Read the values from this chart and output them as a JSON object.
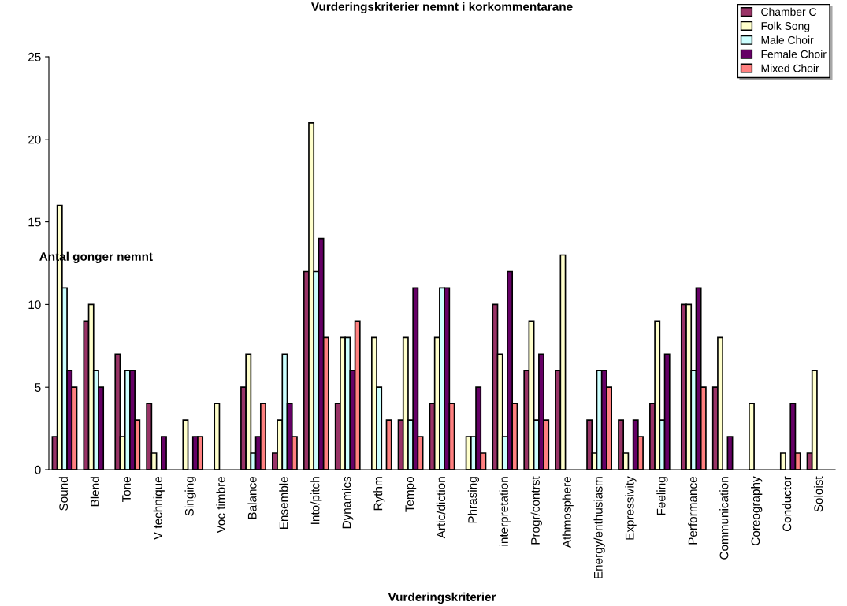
{
  "chart_data": {
    "type": "bar",
    "title": "Vurderingskriterier nemnt i korkommentarane",
    "xlabel": "Vurderingskriterier",
    "ylabel": "Antal gonger nemnt",
    "categories": [
      "Sound",
      "Blend",
      "Tone",
      "V technique",
      "Singing",
      "Voc timbre",
      "Balance",
      "Ensemble",
      "Into/pitch",
      "Dynamics",
      "Rythm",
      "Tempo",
      "Artic/diction",
      "Phrasing",
      "interpretation",
      "Progr/contrst",
      "Athmosphere",
      "Energy/enthusiasm",
      "Expressivity",
      "Feeling",
      "Performance",
      "Communication",
      "Coreography",
      "Conductor",
      "Soloist"
    ],
    "series": [
      {
        "name": "Chamber C",
        "color": "#993366",
        "values": [
          2,
          9,
          7,
          4,
          null,
          null,
          5,
          1,
          12,
          4,
          null,
          3,
          4,
          null,
          10,
          6,
          6,
          3,
          3,
          4,
          10,
          5,
          null,
          null,
          1
        ]
      },
      {
        "name": "Folk Song",
        "color": "#ffffcc",
        "values": [
          16,
          10,
          2,
          1,
          3,
          4,
          7,
          3,
          21,
          8,
          8,
          8,
          8,
          2,
          7,
          9,
          13,
          1,
          1,
          9,
          10,
          8,
          4,
          1,
          6
        ]
      },
      {
        "name": "Male Choir",
        "color": "#ccffff",
        "values": [
          11,
          6,
          6,
          null,
          null,
          null,
          1,
          7,
          12,
          8,
          5,
          3,
          11,
          2,
          2,
          3,
          null,
          6,
          null,
          3,
          6,
          null,
          null,
          null,
          null
        ]
      },
      {
        "name": "Female Choir",
        "color": "#660066",
        "values": [
          6,
          5,
          6,
          2,
          2,
          null,
          2,
          4,
          14,
          6,
          null,
          11,
          11,
          5,
          12,
          7,
          null,
          6,
          3,
          7,
          11,
          2,
          null,
          4,
          null
        ]
      },
      {
        "name": "Mixed Choir",
        "color": "#ff8080",
        "values": [
          5,
          null,
          3,
          null,
          2,
          null,
          4,
          2,
          8,
          9,
          3,
          2,
          4,
          1,
          4,
          3,
          null,
          5,
          2,
          null,
          5,
          null,
          null,
          1,
          null
        ]
      }
    ],
    "ylim": [
      0,
      25
    ],
    "yticks": [
      0,
      5,
      10,
      15,
      20,
      25
    ],
    "grid": false,
    "legend": "top right"
  }
}
